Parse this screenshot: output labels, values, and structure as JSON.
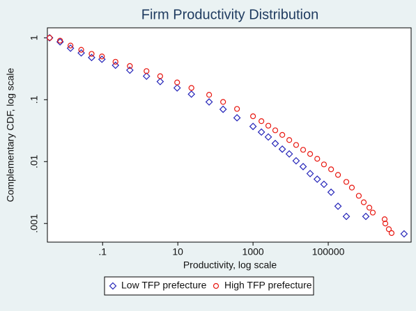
{
  "chart_data": {
    "type": "scatter",
    "title": "Firm Productivity Distribution",
    "x_label": "Productivity, log scale",
    "y_label": "Complementary CDF, log scale",
    "x_log": true,
    "y_log": true,
    "xlim": [
      0.0034,
      16000000
    ],
    "ylim": [
      0.0005,
      1.45
    ],
    "xticks": [
      {
        "value": 0.1,
        "label": ".1"
      },
      10,
      1000,
      100000
    ],
    "yticks": [
      {
        "value": 0.001,
        "label": ".001"
      },
      {
        "value": 0.01,
        "label": ".01"
      },
      {
        "value": 0.1,
        "label": ".1"
      },
      1
    ],
    "legend_position": "bottom",
    "series": [
      {
        "name": "Low TFP prefecture",
        "color": "#2323b8",
        "marker": "diamond",
        "x": [
          0.0039,
          0.0074,
          0.014,
          0.027,
          0.051,
          0.096,
          0.22,
          0.53,
          1.47,
          3.4,
          9.6,
          23,
          68,
          160,
          375,
          1000,
          1670,
          2550,
          3900,
          6000,
          9200,
          14000,
          21500,
          33000,
          51000,
          77000,
          119000,
          182000,
          303000,
          1000000,
          10400000
        ],
        "values": [
          1,
          0.86,
          0.68,
          0.57,
          0.48,
          0.45,
          0.36,
          0.3,
          0.24,
          0.196,
          0.155,
          0.123,
          0.092,
          0.07,
          0.051,
          0.037,
          0.03,
          0.025,
          0.0196,
          0.0159,
          0.0133,
          0.0103,
          0.0083,
          0.0064,
          0.0052,
          0.0043,
          0.0032,
          0.0019,
          0.0013,
          0.0013,
          0.00068
        ]
      },
      {
        "name": "High TFP prefecture",
        "color": "#e8160f",
        "marker": "circle",
        "x": [
          0.0039,
          0.0074,
          0.014,
          0.027,
          0.051,
          0.096,
          0.22,
          0.53,
          1.47,
          3.4,
          9.6,
          23,
          68,
          160,
          375,
          1000,
          1670,
          2550,
          3900,
          6000,
          9200,
          14000,
          21500,
          33000,
          51000,
          77000,
          119000,
          182000,
          303000,
          425000,
          650000,
          880000,
          1240000,
          1530000,
          3160000,
          3300000,
          4080000,
          4840000
        ],
        "values": [
          1,
          0.9,
          0.75,
          0.64,
          0.55,
          0.5,
          0.41,
          0.35,
          0.29,
          0.24,
          0.19,
          0.155,
          0.12,
          0.092,
          0.071,
          0.054,
          0.045,
          0.038,
          0.032,
          0.027,
          0.0223,
          0.0186,
          0.0155,
          0.0133,
          0.0111,
          0.009,
          0.0075,
          0.0061,
          0.0047,
          0.0038,
          0.0028,
          0.0022,
          0.0018,
          0.0015,
          0.00117,
          0.001,
          0.00081,
          0.0007
        ]
      }
    ]
  }
}
